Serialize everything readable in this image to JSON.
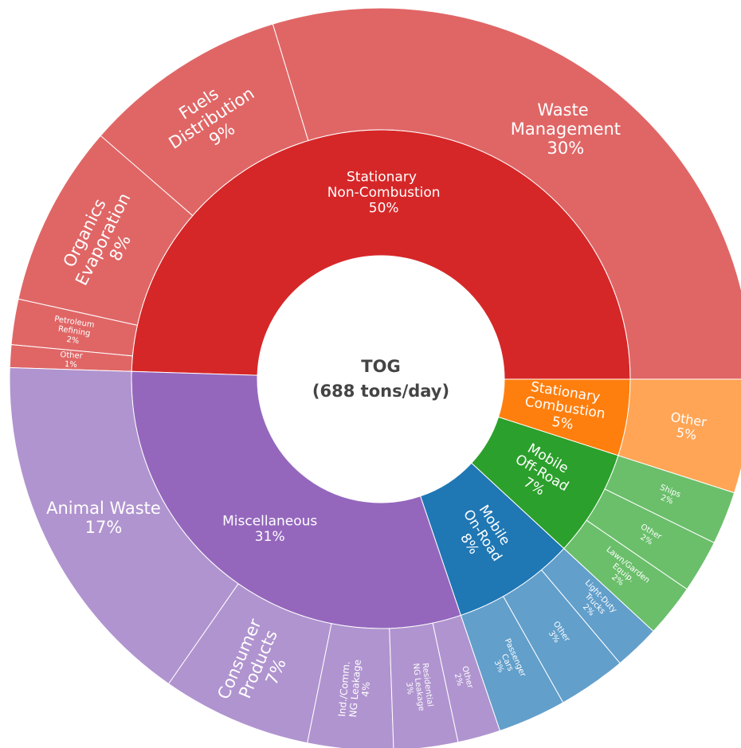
{
  "chart_data": {
    "type": "sunburst",
    "title": "TOG",
    "subtitle": "(688 tons/day)",
    "series": [
      {
        "name": "Stationary Non-Combustion",
        "value": 50,
        "value_label": "50%",
        "color": "#d62728",
        "children": [
          {
            "name": "Waste Management",
            "value": 30,
            "value_label": "30%",
            "color": "#e06666"
          },
          {
            "name": "Fuels Distribution",
            "value": 9,
            "value_label": "9%",
            "color": "#e06666"
          },
          {
            "name": "Organics Evaporation",
            "value": 8,
            "value_label": "8%",
            "color": "#e06666"
          },
          {
            "name": "Petroleum Refining",
            "value": 2,
            "value_label": "2%",
            "color": "#e06666"
          },
          {
            "name": "Other",
            "value": 1,
            "value_label": "1%",
            "color": "#e06666"
          }
        ]
      },
      {
        "name": "Miscellaneous",
        "value": 31,
        "value_label": "31%",
        "color": "#9467bd",
        "children": [
          {
            "name": "Animal Waste",
            "value": 17,
            "value_label": "17%",
            "color": "#b094cf"
          },
          {
            "name": "Consumer Products",
            "value": 7,
            "value_label": "7%",
            "color": "#b094cf"
          },
          {
            "name": "Ind./Comm. NG Leakage",
            "value": 4,
            "value_label": "4%",
            "color": "#b094cf"
          },
          {
            "name": "Residential NG Leakage",
            "value": 3,
            "value_label": "3%",
            "color": "#b094cf"
          },
          {
            "name": "Other",
            "value": 2,
            "value_label": "2%",
            "color": "#b094cf"
          }
        ]
      },
      {
        "name": "Mobile On-Road",
        "value": 8,
        "value_label": "8%",
        "color": "#1f77b4",
        "children": [
          {
            "name": "Passenger Cars",
            "value": 3,
            "value_label": "3%",
            "color": "#629fcb"
          },
          {
            "name": "Other",
            "value": 3,
            "value_label": "3%",
            "color": "#629fcb"
          },
          {
            "name": "Light-Duty Trucks",
            "value": 2,
            "value_label": "2%",
            "color": "#629fcb"
          }
        ]
      },
      {
        "name": "Mobile Off-Road",
        "value": 7,
        "value_label": "7%",
        "color": "#2ca02c",
        "children": [
          {
            "name": "Lawn/Garden Equip.",
            "value": 2,
            "value_label": "2%",
            "color": "#6bbf6b"
          },
          {
            "name": "Other",
            "value": 2,
            "value_label": "2%",
            "color": "#6bbf6b"
          },
          {
            "name": "Ships",
            "value": 2,
            "value_label": "2%",
            "color": "#6bbf6b"
          }
        ]
      },
      {
        "name": "Stationary Combustion",
        "value": 5,
        "value_label": "5%",
        "color": "#ff7f0e",
        "children": [
          {
            "name": "Other",
            "value": 5,
            "value_label": "5%",
            "color": "#ffa555"
          }
        ]
      }
    ]
  }
}
